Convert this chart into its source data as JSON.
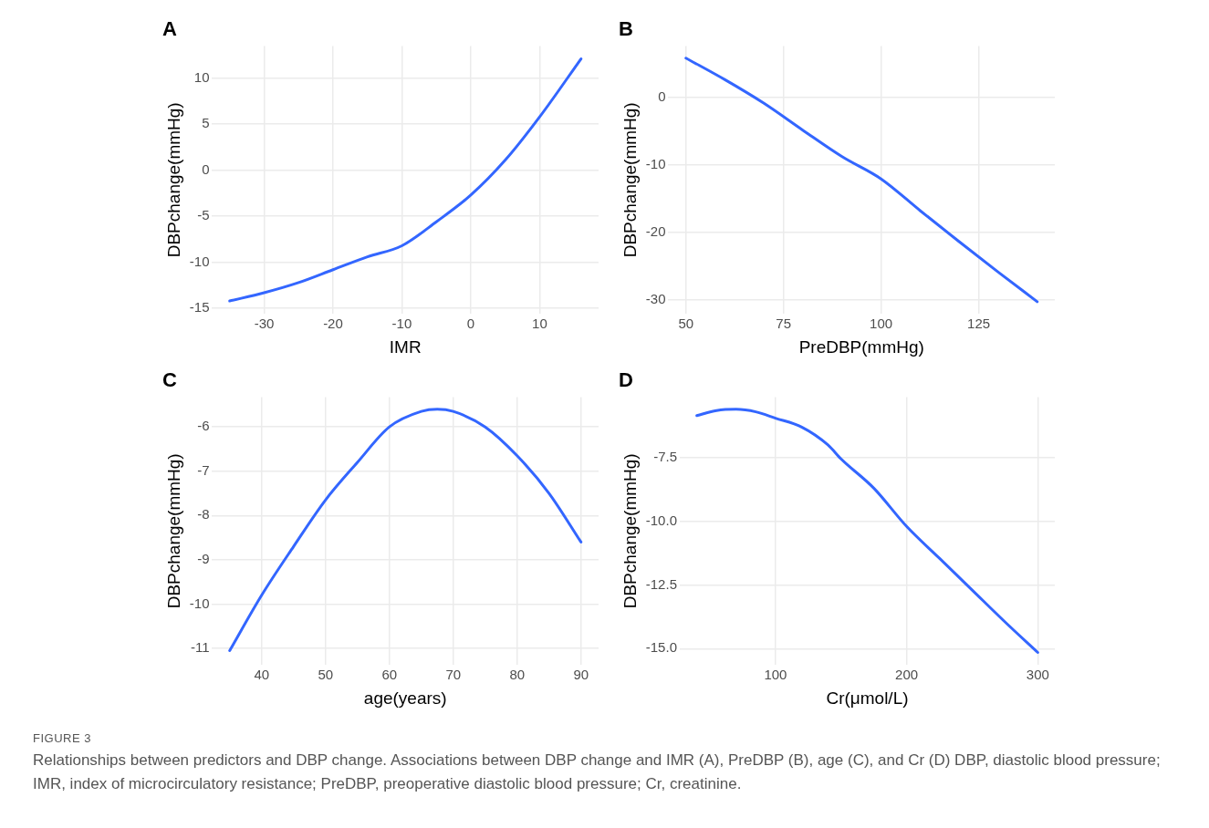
{
  "chart_data": [
    {
      "type": "line",
      "title": "A",
      "xlabel": "IMR",
      "ylabel": "DBPchange(mmHg)",
      "x": [
        -35,
        -30,
        -25,
        -20,
        -15,
        -10,
        -5,
        0,
        5,
        10,
        16
      ],
      "series": [
        {
          "color": "#3366ff",
          "values": [
            -14.2,
            -13.3,
            -12.2,
            -10.8,
            -9.4,
            -8.2,
            -5.6,
            -2.7,
            1.1,
            5.8,
            12.1
          ]
        }
      ],
      "xlim": [
        -37.55,
        18.55
      ],
      "ylim": [
        -15.6,
        13.5
      ],
      "xticks": [
        -30,
        -20,
        -10,
        0,
        10
      ],
      "yticks": [
        -15,
        -10,
        -5,
        0,
        5,
        10
      ],
      "grid": true,
      "marker": "none",
      "line_style": "solid",
      "annotations": [
        "FIGURE 3",
        "Relationships between predictors and DBP change. Associations between DBP change and IMR (A), PreDBP (B), age (C), and Cr (D) DBP, diastolic blood pressure; IMR, index of microcirculatory resistance; PreDBP, preoperative diastolic blood pressure; Cr, creatinine."
      ]
    },
    {
      "type": "line",
      "title": "B",
      "xlabel": "PreDBP(mmHg)",
      "ylabel": "DBPchange(mmHg)",
      "x": [
        50,
        60,
        70,
        80,
        90,
        100,
        110,
        120,
        130,
        140
      ],
      "series": [
        {
          "color": "#3366ff",
          "values": [
            5.8,
            2.6,
            -0.9,
            -4.9,
            -8.8,
            -12.1,
            -16.8,
            -21.4,
            -25.9,
            -30.3
          ]
        }
      ],
      "xlim": [
        45.5,
        144.5
      ],
      "ylim": [
        -32.1,
        7.6
      ],
      "xticks": [
        50,
        75,
        100,
        125
      ],
      "yticks": [
        -30,
        -20,
        -10,
        0
      ],
      "grid": true,
      "marker": "none",
      "line_style": "solid"
    },
    {
      "type": "line",
      "title": "C",
      "xlabel": "age(years)",
      "ylabel": "DBPchange(mmHg)",
      "x": [
        35,
        40,
        45,
        50,
        55,
        60,
        65,
        67.5,
        70,
        75,
        80,
        85,
        90
      ],
      "series": [
        {
          "color": "#3366ff",
          "values": [
            -11.05,
            -9.8,
            -8.7,
            -7.65,
            -6.8,
            -6.0,
            -5.65,
            -5.6,
            -5.65,
            -6.0,
            -6.65,
            -7.5,
            -8.6
          ]
        }
      ],
      "xlim": [
        32.25,
        92.75
      ],
      "ylim": [
        -11.375,
        -5.325
      ],
      "xticks": [
        40,
        50,
        60,
        70,
        80,
        90
      ],
      "yticks": [
        -11,
        -10,
        -9,
        -8,
        -7,
        -6
      ],
      "grid": true,
      "marker": "none",
      "line_style": "solid"
    },
    {
      "type": "line",
      "title": "D",
      "xlabel": "Cr(μmol/L)",
      "ylabel": "DBPchange(mmHg)",
      "x": [
        40,
        55,
        70,
        85,
        100,
        120,
        140,
        150,
        175,
        200,
        225,
        250,
        275,
        300
      ],
      "series": [
        {
          "color": "#3366ff",
          "values": [
            -5.85,
            -5.65,
            -5.6,
            -5.7,
            -5.95,
            -6.3,
            -7.0,
            -7.55,
            -8.7,
            -10.2,
            -11.45,
            -12.7,
            -13.95,
            -15.15
          ]
        }
      ],
      "xlim": [
        27,
        313
      ],
      "ylim": [
        -15.64,
        -5.12
      ],
      "xticks": [
        100,
        200,
        300
      ],
      "yticks": [
        -7.5,
        {
          "value": -10,
          "label": "-10.0"
        },
        -12.5,
        {
          "value": -15,
          "label": "-15.0"
        }
      ],
      "grid": true,
      "marker": "none",
      "line_style": "solid"
    }
  ]
}
